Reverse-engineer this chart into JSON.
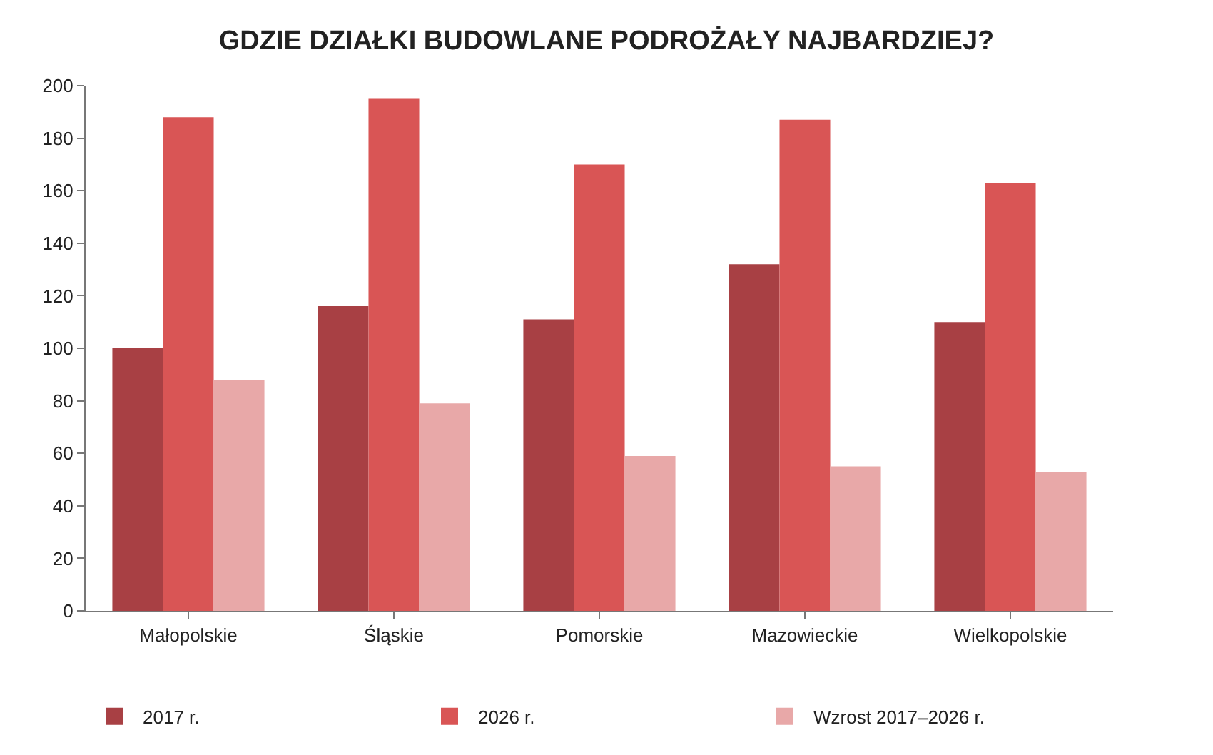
{
  "chart_data": {
    "type": "bar",
    "title": "GDZIE DZIAŁKI BUDOWLANE PODROŻAŁY NAJBARDZIEJ?",
    "categories": [
      "Małopolskie",
      "Śląskie",
      "Pomorskie",
      "Mazowieckie",
      "Wielkopolskie"
    ],
    "series": [
      {
        "name": "2017 r.",
        "color": "#a84044",
        "values": [
          100,
          116,
          111,
          132,
          110
        ]
      },
      {
        "name": "2026 r.",
        "color": "#d95555",
        "values": [
          188,
          195,
          170,
          187,
          163
        ]
      },
      {
        "name": "Wzrost 2017–2026 r.",
        "color": "#e8a8a8",
        "values": [
          88,
          79,
          59,
          55,
          53
        ]
      }
    ],
    "ylim": [
      0,
      200
    ],
    "yticks": [
      0,
      20,
      40,
      60,
      80,
      100,
      120,
      140,
      160,
      180,
      200
    ],
    "legend": "bottom"
  }
}
